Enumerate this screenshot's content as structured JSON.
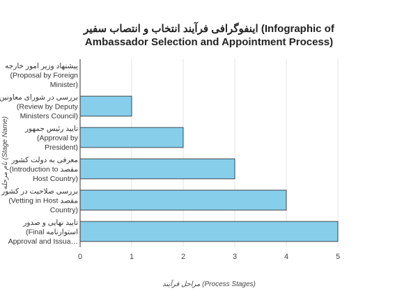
{
  "chart_data": {
    "type": "bar",
    "orientation": "horizontal",
    "title_line1": "اینفوگرافی فرآیند انتخاب و انتصاب سفیر (Infographic of",
    "title_line2": "Ambassador Selection and Appointment Process)",
    "xlabel": "مراحل فرآیند (Process Stages)",
    "ylabel": "نام مرحله (Stage Name)",
    "xlim": [
      0,
      5
    ],
    "xticks": [
      "0",
      "1",
      "2",
      "3",
      "4",
      "5"
    ],
    "grid": true,
    "bar_color": "#87ceeb",
    "categories": [
      [
        "پیشنهاد وزیر امور خارجه",
        "(Proposal by Foreign",
        "Minister)"
      ],
      [
        "بررسی در شورای معاونین",
        "(Review by Deputy",
        "Ministers Council)"
      ],
      [
        "تایید رئیس جمهور",
        "(Approval by",
        "President)"
      ],
      [
        "معرفی به دولت کشور",
        "(Introduction to مقصد",
        "Host Country)"
      ],
      [
        "بررسی صلاحیت در کشور",
        "(Vetting in Host مقصد",
        "Country)"
      ],
      [
        "تایید نهایی و صدور",
        "(Final استوارنامه",
        "Approval and Issua…"
      ]
    ],
    "values": [
      0,
      1,
      2,
      3,
      4,
      5
    ]
  }
}
